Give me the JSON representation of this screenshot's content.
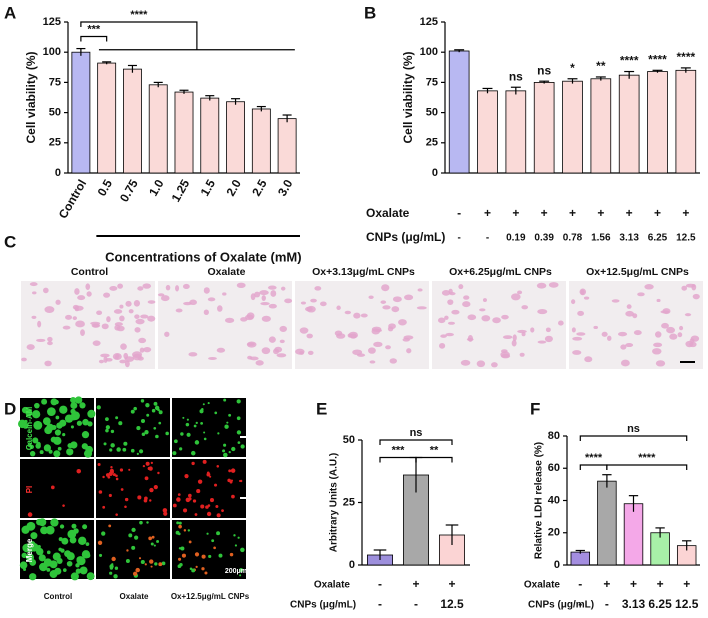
{
  "chart_data": [
    {
      "type": "bar",
      "panel_label": "A",
      "ylabel": "Cell viability (%)",
      "xlabel": "Concentrations of Oxalate (mM)",
      "categories": [
        "Control",
        "0.5",
        "0.75",
        "1.0",
        "1.25",
        "1.5",
        "2.0",
        "2.5",
        "3.0"
      ],
      "values": [
        100,
        91,
        86,
        73,
        67,
        62,
        59,
        53,
        45
      ],
      "errors": [
        3,
        1,
        3,
        2,
        1.5,
        2,
        2.5,
        2,
        3
      ],
      "colors": [
        "#b8b8f2",
        "#fadad8",
        "#fadad8",
        "#fadad8",
        "#fadad8",
        "#fadad8",
        "#fadad8",
        "#fadad8",
        "#fadad8"
      ],
      "ylim": [
        0,
        125
      ],
      "yticks": [
        0,
        25,
        50,
        75,
        100,
        125
      ],
      "annotations": [
        "***",
        "****"
      ]
    },
    {
      "type": "bar",
      "panel_label": "B",
      "ylabel": "Cell viability (%)",
      "values": [
        101,
        68,
        68,
        75,
        76,
        78,
        81,
        84,
        85
      ],
      "errors": [
        1,
        2,
        3,
        1,
        2,
        1.5,
        3,
        1,
        2
      ],
      "colors": [
        "#b8b8f2",
        "#fadad8",
        "#fadad8",
        "#fadad8",
        "#fadad8",
        "#fadad8",
        "#fadad8",
        "#fadad8",
        "#fadad8"
      ],
      "significance": [
        null,
        null,
        "ns",
        "ns",
        "*",
        "**",
        "****",
        "****",
        "****"
      ],
      "rows": [
        {
          "name": "Oxalate",
          "values": [
            "-",
            "+",
            "+",
            "+",
            "+",
            "+",
            "+",
            "+",
            "+"
          ]
        },
        {
          "name": "CNPs (μg/mL)",
          "values": [
            "-",
            "-",
            "0.19",
            "0.39",
            "0.78",
            "1.56",
            "3.13",
            "6.25",
            "12.5"
          ]
        }
      ],
      "ylim": [
        0,
        125
      ],
      "yticks": [
        0,
        25,
        50,
        75,
        100,
        125
      ]
    },
    {
      "type": "bar",
      "panel_label": "E",
      "ylabel": "Arbitrary Units (A.U.)",
      "values": [
        4,
        36,
        12
      ],
      "errors": [
        2,
        7,
        4
      ],
      "colors": [
        "#9d8fdc",
        "#a8a8a8",
        "#fbd4d4"
      ],
      "rows": [
        {
          "name": "Oxalate",
          "values": [
            "-",
            "+",
            "+"
          ]
        },
        {
          "name": "CNPs (μg/mL)",
          "values": [
            "-",
            "-",
            "12.5"
          ]
        }
      ],
      "ylim": [
        0,
        50
      ],
      "yticks": [
        0,
        25,
        50
      ],
      "annotations": [
        "***",
        "**",
        "ns"
      ]
    },
    {
      "type": "bar",
      "panel_label": "F",
      "ylabel": "Relative LDH release (%)",
      "values": [
        8,
        52,
        38,
        20,
        12
      ],
      "errors": [
        1,
        4,
        5,
        3,
        3
      ],
      "colors": [
        "#a48ee0",
        "#a8a8a8",
        "#f4a8e8",
        "#a8f0a8",
        "#fbd4d4"
      ],
      "rows": [
        {
          "name": "Oxalate",
          "values": [
            "-",
            "+",
            "+",
            "+",
            "+"
          ]
        },
        {
          "name": "CNPs (μg/mL)",
          "values": [
            "-",
            "-",
            "3.13",
            "6.25",
            "12.5"
          ]
        }
      ],
      "ylim": [
        0,
        80
      ],
      "yticks": [
        0,
        20,
        40,
        60,
        80
      ],
      "annotations": [
        "****",
        "****",
        "ns"
      ]
    }
  ],
  "micrographs": {
    "panel_label": "C",
    "columns": [
      "Control",
      "Oxalate",
      "Ox+3.13μg/mL CNPs",
      "Ox+6.25μg/mL CNPs",
      "Ox+12.5μg/mL CNPs"
    ]
  },
  "fluorescence": {
    "panel_label": "D",
    "columns": [
      "Control",
      "Oxalate",
      "Ox+12.5μg/mL CNPs"
    ],
    "rows": [
      "Calcein-AM",
      "PI",
      "Merge"
    ],
    "scale": "200μm"
  }
}
